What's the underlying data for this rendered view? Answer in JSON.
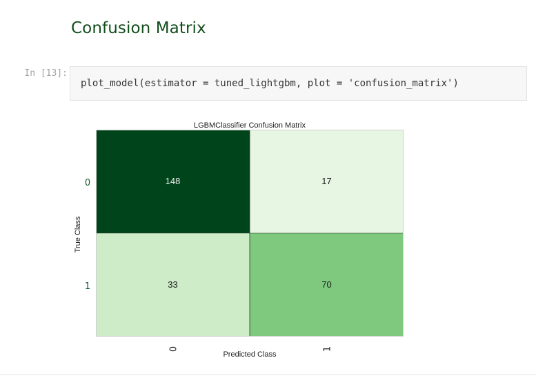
{
  "notebook": {
    "heading": "Confusion Matrix",
    "cell": {
      "prompt": "In [13]:",
      "code": "plot_model(estimator = tuned_lightgbm, plot = 'confusion_matrix')"
    }
  },
  "chart_data": {
    "type": "heatmap",
    "title": "LGBMClassifier Confusion Matrix",
    "xlabel": "Predicted Class",
    "ylabel": "True Class",
    "x_categories": [
      "0",
      "1"
    ],
    "y_categories": [
      "0",
      "1"
    ],
    "values": [
      [
        148,
        17
      ],
      [
        33,
        70
      ]
    ],
    "colormap": "Greens",
    "colors": {
      "low": "#f7fcf5",
      "high": "#00441b",
      "text": "#1a1a1a",
      "axis_tick": "#0e5a2e"
    },
    "grid": false,
    "legend": "none"
  }
}
